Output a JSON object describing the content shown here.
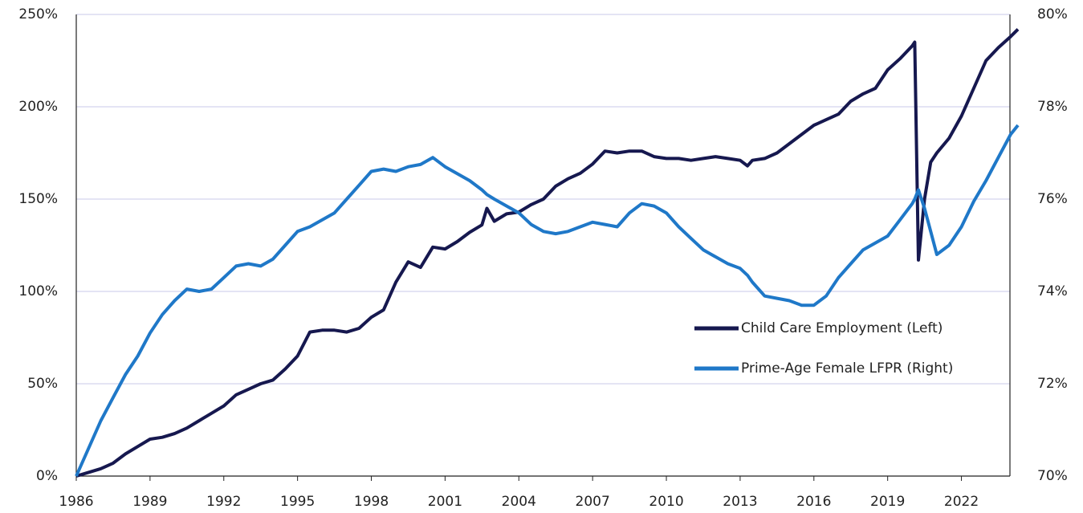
{
  "chart_data": {
    "type": "line",
    "x": [
      1986,
      1986.5,
      1987,
      1987.5,
      1988,
      1988.5,
      1989,
      1989.5,
      1990,
      1990.5,
      1991,
      1991.5,
      1992,
      1992.5,
      1993,
      1993.5,
      1994,
      1994.5,
      1995,
      1995.5,
      1996,
      1996.5,
      1997,
      1997.5,
      1998,
      1998.5,
      1999,
      1999.5,
      2000,
      2000.5,
      2001,
      2001.5,
      2002,
      2002.5,
      2002.7,
      2003,
      2003.5,
      2004,
      2004.5,
      2005,
      2005.5,
      2006,
      2006.5,
      2007,
      2007.5,
      2008,
      2008.5,
      2009,
      2009.5,
      2010,
      2010.5,
      2011,
      2011.5,
      2012,
      2012.5,
      2013,
      2013.3,
      2013.5,
      2014,
      2014.5,
      2015,
      2015.5,
      2016,
      2016.5,
      2017,
      2017.5,
      2018,
      2018.5,
      2019,
      2019.5,
      2020,
      2020.1,
      2020.25,
      2020.5,
      2020.75,
      2021,
      2021.5,
      2022,
      2022.5,
      2023,
      2023.5,
      2024,
      2024.3
    ],
    "series": [
      {
        "name": "Child Care Employment (Left)",
        "color": "#16184f",
        "values": [
          0,
          2,
          4,
          7,
          12,
          16,
          20,
          21,
          23,
          26,
          30,
          34,
          38,
          44,
          47,
          50,
          52,
          58,
          65,
          78,
          79,
          79,
          78,
          80,
          86,
          90,
          105,
          116,
          113,
          124,
          123,
          127,
          132,
          136,
          145,
          138,
          142,
          143,
          147,
          150,
          157,
          161,
          164,
          169,
          176,
          175,
          176,
          176,
          173,
          172,
          172,
          171,
          172,
          173,
          172,
          171,
          168,
          171,
          172,
          175,
          180,
          185,
          190,
          193,
          196,
          203,
          207,
          210,
          220,
          226,
          233,
          235,
          117,
          150,
          170,
          175,
          183,
          195,
          210,
          225,
          232,
          238,
          242
        ]
      },
      {
        "name": "Prime-Age Female LFPR (Right)",
        "color": "#1f78c8",
        "axis": "y2",
        "values": [
          70,
          70.6,
          71.2,
          71.7,
          72.2,
          72.6,
          73.1,
          73.5,
          73.8,
          74.05,
          74.0,
          74.05,
          74.3,
          74.55,
          74.6,
          74.55,
          74.7,
          75.0,
          75.3,
          75.4,
          75.55,
          75.7,
          76.0,
          76.3,
          76.6,
          76.65,
          76.6,
          76.7,
          76.75,
          76.9,
          76.7,
          76.55,
          76.4,
          76.2,
          76.1,
          76.0,
          75.85,
          75.7,
          75.45,
          75.3,
          75.25,
          75.3,
          75.4,
          75.5,
          75.45,
          75.4,
          75.7,
          75.9,
          75.85,
          75.7,
          75.4,
          75.15,
          74.9,
          74.75,
          74.6,
          74.5,
          74.35,
          74.2,
          73.9,
          73.85,
          73.8,
          73.7,
          73.7,
          73.9,
          74.3,
          74.6,
          74.9,
          75.05,
          75.2,
          75.55,
          75.9,
          76.0,
          76.2,
          75.8,
          75.3,
          74.8,
          75.0,
          75.4,
          75.95,
          76.4,
          76.9,
          77.4,
          77.6
        ]
      }
    ],
    "xlim": [
      1986,
      2024.3
    ],
    "xticks": [
      1986,
      1989,
      1992,
      1995,
      1998,
      2001,
      2004,
      2007,
      2010,
      2013,
      2016,
      2019,
      2022
    ],
    "ylim": [
      0,
      250
    ],
    "yticks": [
      {
        "value": 0,
        "label": "0%"
      },
      {
        "value": 50,
        "label": "50%"
      },
      {
        "value": 100,
        "label": "100%"
      },
      {
        "value": 150,
        "label": "150%"
      },
      {
        "value": 200,
        "label": "200%"
      },
      {
        "value": 250,
        "label": "250%"
      }
    ],
    "y2lim": [
      70,
      80
    ],
    "y2ticks": [
      {
        "value": 70,
        "label": "70%"
      },
      {
        "value": 72,
        "label": "72%"
      },
      {
        "value": 74,
        "label": "74%"
      },
      {
        "value": 76,
        "label": "76%"
      },
      {
        "value": 78,
        "label": "78%"
      },
      {
        "value": 80,
        "label": "80%"
      }
    ],
    "grid": true,
    "legend": "center right"
  }
}
